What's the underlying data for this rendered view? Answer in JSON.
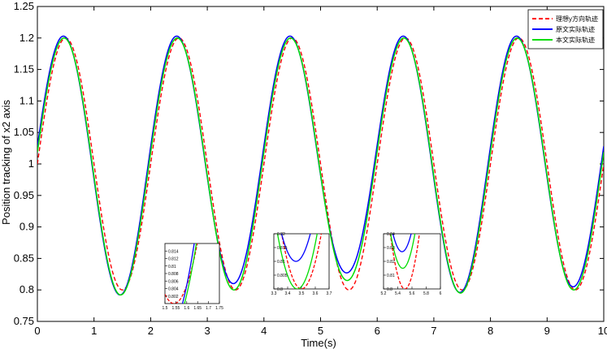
{
  "chart_data": {
    "type": "line",
    "xlabel": "Time(s)",
    "ylabel": "Position tracking of x2 axis",
    "xlim": [
      0,
      10
    ],
    "ylim": [
      0.75,
      1.25
    ],
    "xticks": [
      "0",
      "1",
      "2",
      "3",
      "4",
      "5",
      "6",
      "7",
      "8",
      "9",
      "10"
    ],
    "yticks": [
      "0.75",
      "0.8",
      "0.85",
      "0.9",
      "0.95",
      "1",
      "1.05",
      "1.1",
      "1.15",
      "1.2",
      "1.25"
    ],
    "grid": false,
    "legend_position": "top-right",
    "series": [
      {
        "name": "理想y方向轨迹",
        "color": "#ff0000",
        "dash": "dashed",
        "amplitude": 0.2,
        "period": 2,
        "phase_shift": 0,
        "offset": 1
      },
      {
        "name": "原文实际轨迹",
        "color": "#0000ff",
        "dash": "solid",
        "amplitude": 0.2,
        "period": 2,
        "phase_shift": -0.04,
        "offset": 1.003,
        "trough_values": [
          0.792,
          0.81,
          0.827,
          0.796,
          0.805
        ]
      },
      {
        "name": "本文实际轨迹",
        "color": "#00dd00",
        "dash": "solid",
        "amplitude": 0.2,
        "period": 2,
        "phase_shift": -0.03,
        "offset": 1,
        "trough_values": [
          0.792,
          0.8,
          0.815,
          0.795,
          0.8
        ]
      }
    ],
    "insets": [
      {
        "xlim": [
          1.45,
          1.75
        ],
        "ylim": [
          0.8,
          0.816
        ],
        "xticks": [
          "1.5",
          "1.55",
          "1.6",
          "1.65",
          "1.7",
          "1.75"
        ],
        "yticks": [
          "0.802",
          "0.804",
          "0.806",
          "0.808",
          "0.81",
          "0.812",
          "0.814"
        ]
      },
      {
        "xlim": [
          3.3,
          3.7
        ],
        "ylim": [
          0.8,
          0.82
        ],
        "xticks": [
          "3.3",
          "3.4",
          "3.5",
          "3.6",
          "3.7"
        ],
        "yticks": [
          "0.8",
          "0.805",
          "0.81",
          "0.815",
          "0.82"
        ]
      },
      {
        "xlim": [
          5.2,
          6.0
        ],
        "ylim": [
          0.8,
          0.84
        ],
        "xticks": [
          "5.2",
          "5.4",
          "5.6",
          "5.8",
          "6"
        ],
        "yticks": [
          "0.8",
          "0.81",
          "0.82",
          "0.83",
          "0.84"
        ]
      }
    ]
  }
}
